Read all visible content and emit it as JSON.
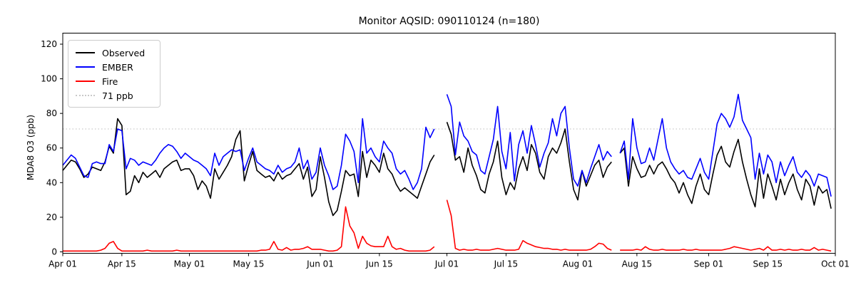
{
  "chart_data": {
    "type": "line",
    "title": "Monitor AQSID: 090110124 (n=180)",
    "xlabel": "",
    "ylabel": "MDA8 O3 (ppb)",
    "n_label": 180,
    "ylim": [
      0,
      126
    ],
    "y_ticks": [
      0,
      20,
      40,
      60,
      80,
      100,
      120
    ],
    "x_unit": "day index from Apr 01 (index 0) to Oct 01 (index 183); null = missing day",
    "x_ticks": [
      {
        "day": 0,
        "label": "Apr 01"
      },
      {
        "day": 14,
        "label": "Apr 15"
      },
      {
        "day": 30,
        "label": "May 01"
      },
      {
        "day": 44,
        "label": "May 15"
      },
      {
        "day": 61,
        "label": "Jun 01"
      },
      {
        "day": 75,
        "label": "Jun 15"
      },
      {
        "day": 91,
        "label": "Jul 01"
      },
      {
        "day": 105,
        "label": "Jul 15"
      },
      {
        "day": 122,
        "label": "Aug 01"
      },
      {
        "day": 136,
        "label": "Aug 15"
      },
      {
        "day": 153,
        "label": "Sep 01"
      },
      {
        "day": 167,
        "label": "Sep 15"
      },
      {
        "day": 183,
        "label": "Oct 01"
      }
    ],
    "threshold": {
      "value": 71,
      "label": "71 ppb",
      "color": "#c9c9c9",
      "style": "dotted"
    },
    "grid": false,
    "legend_position": "upper-left",
    "series": [
      {
        "name": "Observed",
        "color": "#000000",
        "values": [
          47,
          50,
          53,
          52,
          48,
          43,
          45,
          49,
          48,
          47,
          52,
          61,
          57,
          77,
          73,
          33,
          35,
          44,
          40,
          46,
          43,
          45,
          47,
          43,
          48,
          50,
          52,
          53,
          47,
          48,
          48,
          44,
          36,
          41,
          38,
          31,
          48,
          42,
          46,
          50,
          55,
          65,
          70,
          41,
          50,
          58,
          47,
          45,
          43,
          44,
          41,
          46,
          42,
          44,
          45,
          48,
          51,
          42,
          49,
          32,
          36,
          55,
          43,
          29,
          21,
          24,
          35,
          47,
          44,
          45,
          32,
          58,
          43,
          53,
          50,
          46,
          57,
          48,
          45,
          39,
          35,
          37,
          35,
          33,
          31,
          38,
          45,
          52,
          56,
          null,
          null,
          75,
          68,
          53,
          55,
          46,
          60,
          50,
          44,
          36,
          34,
          45,
          52,
          64,
          43,
          33,
          40,
          36,
          48,
          55,
          47,
          62,
          57,
          46,
          42,
          55,
          60,
          57,
          63,
          71,
          52,
          36,
          30,
          47,
          38,
          44,
          50,
          53,
          43,
          49,
          52,
          null,
          57,
          60,
          38,
          55,
          48,
          43,
          44,
          50,
          45,
          50,
          52,
          48,
          43,
          40,
          34,
          40,
          33,
          28,
          38,
          45,
          36,
          33,
          45,
          56,
          61,
          52,
          49,
          58,
          65,
          52,
          42,
          33,
          26,
          48,
          31,
          45,
          38,
          30,
          42,
          33,
          40,
          45,
          36,
          30,
          42,
          38,
          27,
          38,
          34,
          36,
          25
        ]
      },
      {
        "name": "EMBER",
        "color": "#0000ff",
        "values": [
          50,
          53,
          56,
          54,
          49,
          44,
          43,
          51,
          52,
          51,
          51,
          62,
          58,
          71,
          70,
          48,
          54,
          53,
          50,
          52,
          51,
          50,
          53,
          57,
          60,
          62,
          61,
          58,
          54,
          57,
          55,
          53,
          52,
          50,
          48,
          44,
          57,
          50,
          55,
          57,
          59,
          58,
          59,
          47,
          54,
          60,
          52,
          50,
          48,
          47,
          45,
          50,
          46,
          48,
          49,
          52,
          60,
          48,
          53,
          42,
          46,
          60,
          50,
          44,
          36,
          38,
          50,
          68,
          64,
          58,
          40,
          77,
          57,
          60,
          55,
          52,
          64,
          60,
          57,
          48,
          45,
          47,
          42,
          36,
          40,
          48,
          72,
          66,
          71,
          null,
          null,
          91,
          84,
          56,
          75,
          67,
          64,
          58,
          56,
          47,
          45,
          55,
          65,
          84,
          58,
          48,
          69,
          41,
          62,
          70,
          57,
          73,
          62,
          49,
          57,
          63,
          77,
          67,
          80,
          84,
          60,
          42,
          38,
          47,
          40,
          48,
          55,
          62,
          53,
          58,
          55,
          null,
          57,
          64,
          42,
          77,
          60,
          51,
          52,
          60,
          53,
          65,
          77,
          60,
          52,
          48,
          45,
          47,
          43,
          42,
          48,
          54,
          46,
          42,
          58,
          74,
          80,
          77,
          72,
          78,
          91,
          76,
          71,
          66,
          42,
          57,
          45,
          56,
          52,
          40,
          52,
          44,
          50,
          55,
          46,
          43,
          47,
          44,
          38,
          45,
          44,
          43,
          32
        ]
      },
      {
        "name": "Fire",
        "color": "#ff0000",
        "values": [
          0.5,
          0.5,
          0.5,
          0.5,
          0.5,
          0.5,
          0.5,
          0.5,
          0.5,
          1,
          2,
          5,
          6,
          2,
          0.5,
          0.5,
          0.5,
          0.5,
          0.5,
          0.5,
          1,
          0.5,
          0.5,
          0.5,
          0.5,
          0.5,
          0.5,
          1,
          0.5,
          0.5,
          0.5,
          0.5,
          0.5,
          0.5,
          0.5,
          0.5,
          0.5,
          0.5,
          0.5,
          0.5,
          0.5,
          0.5,
          0.5,
          0.5,
          0.5,
          0.5,
          0.5,
          1,
          1,
          1.5,
          6,
          1.5,
          1,
          2.5,
          1,
          1.5,
          1.5,
          2,
          3,
          1.5,
          1.5,
          1.5,
          1,
          0.5,
          0.5,
          1,
          3,
          26,
          15,
          11,
          2,
          9,
          5,
          3.5,
          3,
          3,
          3,
          9,
          3,
          1.5,
          2,
          1,
          0.5,
          0.5,
          0.5,
          0.5,
          0.5,
          1,
          3,
          null,
          null,
          30,
          21,
          2,
          1,
          1.5,
          1,
          1,
          1.5,
          1,
          1,
          1,
          1.5,
          2,
          1.5,
          1,
          1,
          1,
          1.5,
          6.5,
          5,
          4,
          3,
          2.5,
          2,
          2,
          1.5,
          1.5,
          1,
          1.5,
          1,
          1,
          1,
          1,
          1,
          1.5,
          3,
          5,
          4.5,
          2,
          1,
          null,
          1,
          1,
          1,
          1,
          1.5,
          1,
          3,
          1.5,
          1,
          1,
          1.5,
          1,
          1,
          1,
          1,
          1.5,
          1,
          1,
          1.5,
          1,
          1,
          1,
          1,
          1,
          1,
          1.5,
          2,
          3,
          2.5,
          2,
          1.5,
          1,
          1.5,
          2,
          1,
          3,
          1,
          1,
          1.5,
          1,
          1.5,
          1,
          1,
          1.5,
          1,
          1,
          2.5,
          1,
          1.5,
          1,
          0.5
        ]
      }
    ]
  }
}
